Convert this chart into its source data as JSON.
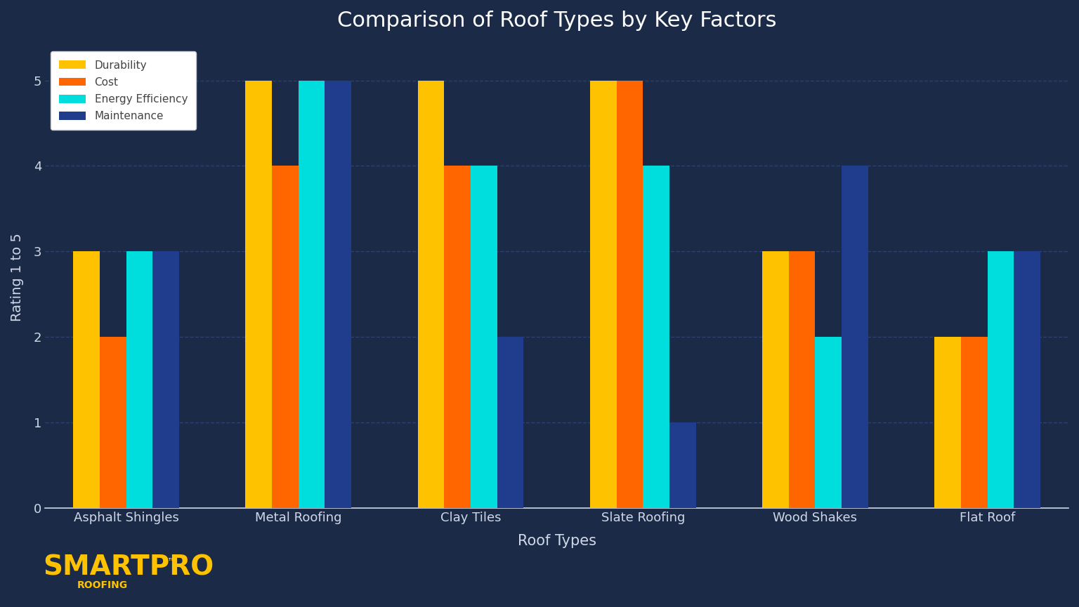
{
  "title": "Comparison of Roof Types by Key Factors",
  "xlabel": "Roof Types",
  "ylabel": "Rating 1 to 5",
  "background_color": "#1a2a47",
  "plot_background_color": "#1a2a47",
  "grid_color": "#2e4070",
  "text_color": "#d0d8e8",
  "title_color": "#ffffff",
  "categories": [
    "Asphalt Shingles",
    "Metal Roofing",
    "Clay Tiles",
    "Slate Roofing",
    "Wood Shakes",
    "Flat Roof"
  ],
  "factors": [
    "Durability",
    "Cost",
    "Energy Efficiency",
    "Maintenance"
  ],
  "colors": [
    "#FFC200",
    "#FF6600",
    "#00DDDD",
    "#1F3D8C"
  ],
  "data": {
    "Durability": [
      3,
      5,
      5,
      5,
      3,
      2
    ],
    "Cost": [
      2,
      4,
      4,
      5,
      3,
      2
    ],
    "Energy Efficiency": [
      3,
      5,
      4,
      4,
      2,
      3
    ],
    "Maintenance": [
      3,
      5,
      2,
      1,
      4,
      3
    ]
  },
  "ylim": [
    0,
    5.4
  ],
  "yticks": [
    0,
    1,
    2,
    3,
    4,
    5
  ],
  "legend_bg": "#ffffff",
  "logo_text_main": "SMARTPRO",
  "logo_tm": "™",
  "logo_text_sub": "ROOFING",
  "logo_color": "#FFC200"
}
